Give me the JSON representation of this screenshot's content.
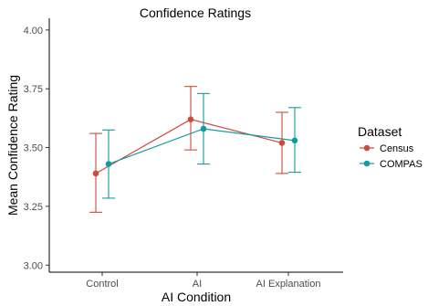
{
  "chart_data": {
    "type": "line",
    "title": "Confidence Ratings",
    "xlabel": "AI Condition",
    "ylabel": "Mean Confidence Rating",
    "categories": [
      "Control",
      "AI",
      "AI Explanation"
    ],
    "ylim": [
      2.97,
      4.05
    ],
    "yticks": [
      3.0,
      3.25,
      3.5,
      3.75,
      4.0
    ],
    "ytick_labels": [
      "3.00",
      "3.25",
      "3.50",
      "3.75",
      "4.00"
    ],
    "grid": false,
    "legend": {
      "title": "Dataset",
      "position": "right"
    },
    "series": [
      {
        "name": "Census",
        "color": "#cc4c3b",
        "values": [
          3.39,
          3.62,
          3.52
        ],
        "lower": [
          3.225,
          3.49,
          3.39
        ],
        "upper": [
          3.56,
          3.76,
          3.65
        ]
      },
      {
        "name": "COMPAS",
        "color": "#169b9b",
        "values": [
          3.43,
          3.58,
          3.53
        ],
        "lower": [
          3.285,
          3.43,
          3.395
        ],
        "upper": [
          3.575,
          3.73,
          3.67
        ]
      }
    ]
  }
}
